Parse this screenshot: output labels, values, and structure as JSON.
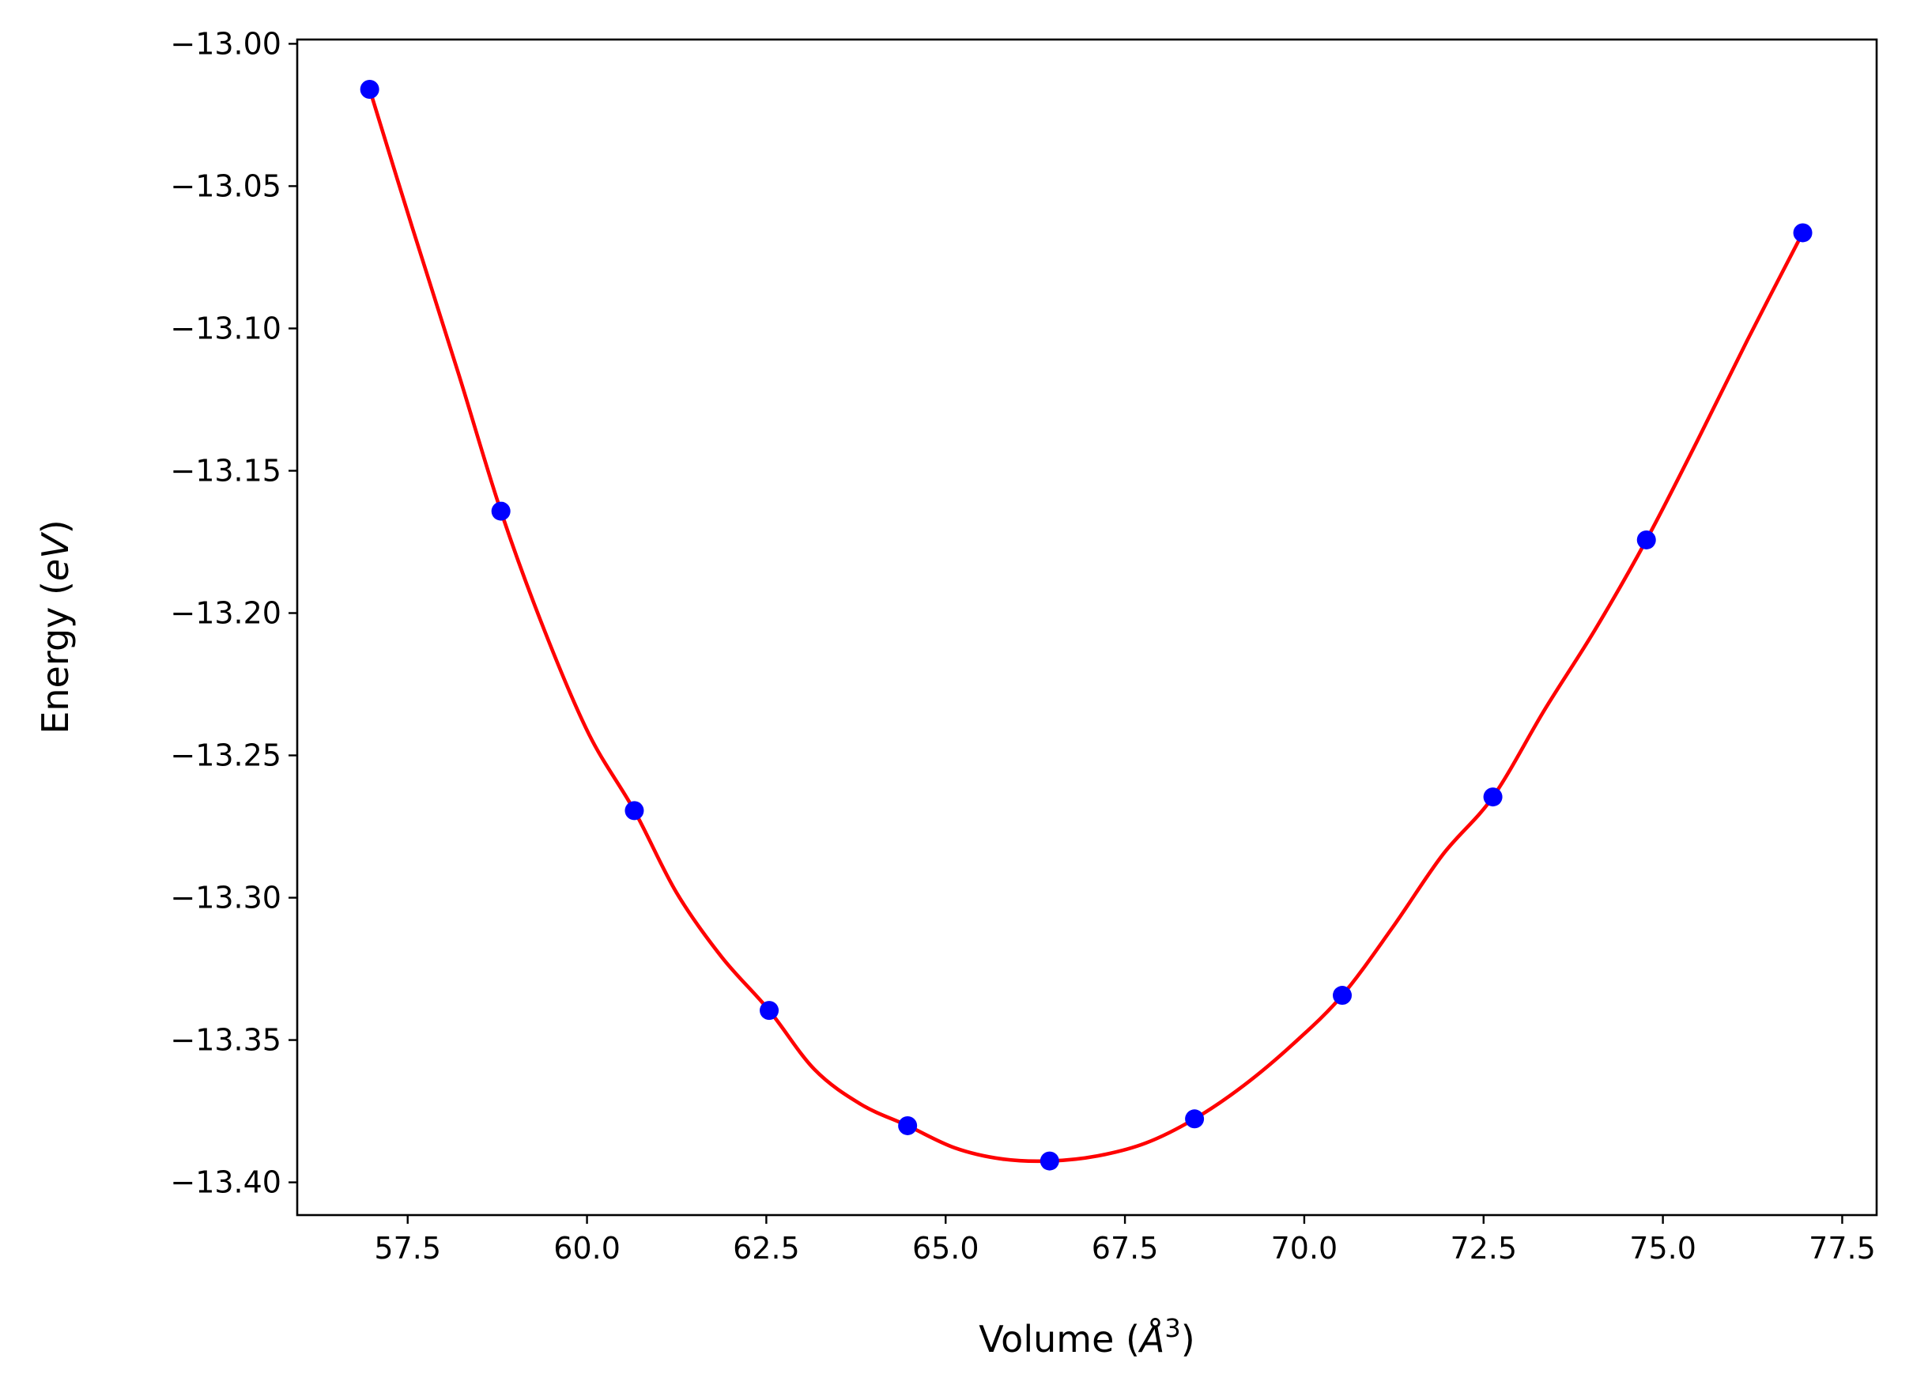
{
  "chart_data": {
    "type": "scatter",
    "title": "",
    "xlabel": {
      "prefix": "Volume (",
      "symbol": "Å",
      "sup": "3",
      "suffix": ")"
    },
    "ylabel": {
      "prefix": "Energy (",
      "symbol": "eV",
      "suffix": ")"
    },
    "xlim": [
      55.96,
      77.98
    ],
    "ylim": [
      -13.4115,
      -12.9985
    ],
    "xticks": [
      57.5,
      60.0,
      62.5,
      65.0,
      67.5,
      70.0,
      72.5,
      75.0,
      77.5
    ],
    "xtick_labels": [
      "57.5",
      "60.0",
      "62.5",
      "65.0",
      "67.5",
      "70.0",
      "72.5",
      "75.0",
      "77.5"
    ],
    "yticks": [
      -13.0,
      -13.05,
      -13.1,
      -13.15,
      -13.2,
      -13.25,
      -13.3,
      -13.35,
      -13.4
    ],
    "ytick_labels": [
      "−13.00",
      "−13.05",
      "−13.10",
      "−13.15",
      "−13.20",
      "−13.25",
      "−13.30",
      "−13.35",
      "−13.40"
    ],
    "grid": false,
    "series": [
      {
        "kind": "points",
        "color": "#0000ff",
        "x": [
          56.97,
          58.8,
          60.66,
          62.54,
          64.47,
          66.45,
          68.47,
          70.53,
          72.63,
          74.77,
          76.95
        ],
        "y": [
          -13.016,
          -13.1642,
          -13.2694,
          -13.3396,
          -13.3801,
          -13.3925,
          -13.3777,
          -13.3343,
          -13.2646,
          -13.1743,
          -13.0664
        ]
      },
      {
        "kind": "fit-curve",
        "color": "#ff0000",
        "x": [
          56.97,
          57.57,
          58.21,
          58.8,
          59.41,
          60.03,
          60.66,
          61.25,
          61.88,
          62.54,
          63.17,
          63.82,
          64.47,
          65.13,
          65.79,
          66.45,
          67.12,
          67.79,
          68.47,
          69.16,
          69.84,
          70.53,
          71.23,
          71.93,
          72.63,
          73.35,
          74.06,
          74.77,
          75.47,
          76.18,
          76.95
        ],
        "y": [
          -13.016,
          -13.065,
          -13.116,
          -13.1642,
          -13.2063,
          -13.2427,
          -13.2694,
          -13.2983,
          -13.3209,
          -13.3396,
          -13.3603,
          -13.3726,
          -13.3801,
          -13.3879,
          -13.3918,
          -13.3925,
          -13.3907,
          -13.3862,
          -13.3777,
          -13.3659,
          -13.3515,
          -13.3343,
          -13.3105,
          -13.2849,
          -13.2646,
          -13.234,
          -13.2056,
          -13.1743,
          -13.14,
          -13.104,
          -13.0664
        ]
      }
    ]
  }
}
